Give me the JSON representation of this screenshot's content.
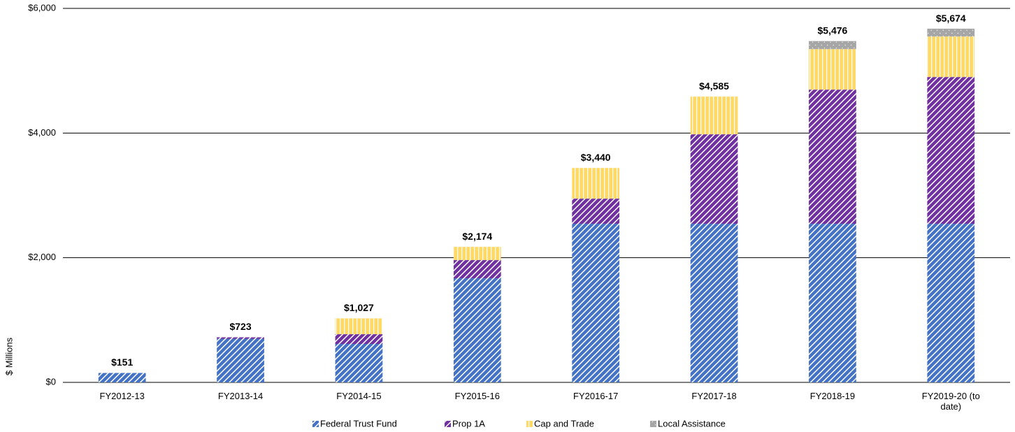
{
  "chart_data": {
    "type": "stacked_bar",
    "y_label": "$ Millions",
    "categories": [
      "FY2012-13",
      "FY2013-14",
      "FY2014-15",
      "FY2015-16",
      "FY2016-17",
      "FY2017-18",
      "FY2018-19",
      "FY2019-20 (to date)"
    ],
    "series": [
      {
        "name": "Federal Trust Fund",
        "color": "#4472c4",
        "values": [
          151,
          700,
          617,
          1670,
          2545,
          2545,
          2545,
          2545
        ]
      },
      {
        "name": "Prop 1A",
        "color": "#7030a0",
        "values": [
          0,
          23,
          156,
          292,
          403,
          1435,
          2152,
          2354
        ]
      },
      {
        "name": "Cap and Trade",
        "color": "#ffd966",
        "values": [
          0,
          0,
          254,
          212,
          492,
          605,
          650,
          650
        ]
      },
      {
        "name": "Local Assistance",
        "color": "#a6a6a6",
        "values": [
          0,
          0,
          0,
          0,
          0,
          0,
          129,
          125
        ]
      }
    ],
    "totals": [
      151,
      723,
      1027,
      2174,
      3440,
      4585,
      5476,
      5674
    ],
    "total_labels": [
      "$151",
      "$723",
      "$1,027",
      "$2,174",
      "$3,440",
      "$4,585",
      "$5,476",
      "$5,674"
    ],
    "ylim": [
      0,
      6000
    ],
    "yticks": [
      {
        "value": 0,
        "label": "$0"
      },
      {
        "value": 2000,
        "label": "$2,000"
      },
      {
        "value": 4000,
        "label": "$4,000"
      },
      {
        "value": 6000,
        "label": "$6,000"
      }
    ],
    "grid": true,
    "legend": "bottom"
  }
}
